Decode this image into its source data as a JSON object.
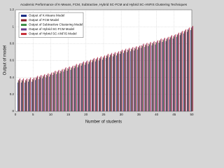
{
  "chart_data": {
    "type": "bar",
    "title": "Academic Performance of K-Means, FCM, Subtractive, Hybrid SC-FCM and Hybrid SC-ANFIS Clustering Techniques",
    "xlabel": "Number of students",
    "ylabel": "Output of model",
    "x": [
      1,
      2,
      3,
      4,
      5,
      6,
      7,
      8,
      9,
      10,
      11,
      12,
      13,
      14,
      15,
      16,
      17,
      18,
      19,
      20,
      21,
      22,
      23,
      24,
      25,
      26,
      27,
      28,
      29,
      30,
      31,
      32,
      33,
      34,
      35,
      36,
      37,
      38,
      39,
      40,
      41,
      42,
      43,
      44,
      45,
      46,
      47,
      48,
      49,
      50
    ],
    "xlim": [
      0,
      50
    ],
    "xticks": [
      0,
      5,
      10,
      15,
      20,
      25,
      30,
      35,
      40,
      45,
      50
    ],
    "ylim": [
      0,
      1.2
    ],
    "yticks": [
      0,
      0.2,
      0.4,
      0.6,
      0.8,
      1,
      1.2
    ],
    "grid": true,
    "legend": "upper left",
    "series": [
      {
        "name": "Output of K-Means Model",
        "color": "#1c2f86",
        "values": [
          0.34,
          0.34,
          0.34,
          0.35,
          0.35,
          0.37,
          0.38,
          0.39,
          0.4,
          0.41,
          0.43,
          0.44,
          0.45,
          0.47,
          0.48,
          0.49,
          0.51,
          0.52,
          0.54,
          0.55,
          0.56,
          0.58,
          0.59,
          0.6,
          0.61,
          0.63,
          0.64,
          0.65,
          0.66,
          0.68,
          0.69,
          0.7,
          0.71,
          0.72,
          0.73,
          0.75,
          0.76,
          0.77,
          0.78,
          0.79,
          0.81,
          0.82,
          0.83,
          0.85,
          0.86,
          0.88,
          0.9,
          0.92,
          0.94,
          0.96
        ]
      },
      {
        "name": "Output of FCM Model",
        "color": "#8a1c2a",
        "values": [
          0.37,
          0.37,
          0.37,
          0.38,
          0.38,
          0.4,
          0.41,
          0.42,
          0.43,
          0.44,
          0.46,
          0.47,
          0.48,
          0.5,
          0.51,
          0.52,
          0.54,
          0.55,
          0.57,
          0.58,
          0.59,
          0.61,
          0.62,
          0.63,
          0.64,
          0.66,
          0.67,
          0.68,
          0.69,
          0.71,
          0.72,
          0.73,
          0.74,
          0.75,
          0.76,
          0.78,
          0.79,
          0.8,
          0.81,
          0.82,
          0.84,
          0.85,
          0.86,
          0.88,
          0.89,
          0.91,
          0.93,
          0.95,
          0.97,
          0.99
        ]
      },
      {
        "name": "Output of Subtractive Clustering Model",
        "color": "#3f8f4a",
        "values": [
          0.36,
          0.36,
          0.36,
          0.37,
          0.37,
          0.39,
          0.4,
          0.41,
          0.42,
          0.43,
          0.45,
          0.46,
          0.47,
          0.49,
          0.5,
          0.51,
          0.53,
          0.54,
          0.56,
          0.57,
          0.58,
          0.6,
          0.61,
          0.62,
          0.63,
          0.65,
          0.66,
          0.67,
          0.68,
          0.7,
          0.71,
          0.72,
          0.73,
          0.74,
          0.75,
          0.77,
          0.78,
          0.79,
          0.8,
          0.81,
          0.83,
          0.84,
          0.85,
          0.87,
          0.88,
          0.9,
          0.92,
          0.94,
          0.96,
          0.98
        ]
      },
      {
        "name": "Output of Hybrid SC-FCM Model",
        "color": "#6b3f8e",
        "values": [
          0.38,
          0.38,
          0.38,
          0.39,
          0.39,
          0.41,
          0.42,
          0.43,
          0.44,
          0.45,
          0.47,
          0.48,
          0.49,
          0.51,
          0.52,
          0.53,
          0.55,
          0.56,
          0.58,
          0.59,
          0.6,
          0.62,
          0.63,
          0.64,
          0.65,
          0.67,
          0.68,
          0.69,
          0.7,
          0.72,
          0.73,
          0.74,
          0.75,
          0.76,
          0.77,
          0.79,
          0.8,
          0.81,
          0.82,
          0.83,
          0.85,
          0.86,
          0.87,
          0.89,
          0.9,
          0.92,
          0.94,
          0.96,
          0.98,
          1.0
        ]
      },
      {
        "name": "Output of Hybrid SC-ANFIS Model",
        "color": "#c8323a",
        "values": [
          0.39,
          0.39,
          0.39,
          0.4,
          0.4,
          0.42,
          0.43,
          0.44,
          0.45,
          0.46,
          0.48,
          0.49,
          0.5,
          0.52,
          0.53,
          0.54,
          0.56,
          0.57,
          0.59,
          0.6,
          0.61,
          0.63,
          0.64,
          0.65,
          0.66,
          0.68,
          0.69,
          0.7,
          0.71,
          0.73,
          0.74,
          0.75,
          0.76,
          0.77,
          0.78,
          0.8,
          0.81,
          0.82,
          0.83,
          0.84,
          0.86,
          0.87,
          0.88,
          0.9,
          0.91,
          0.93,
          0.95,
          0.97,
          0.99,
          1.01
        ]
      }
    ]
  }
}
